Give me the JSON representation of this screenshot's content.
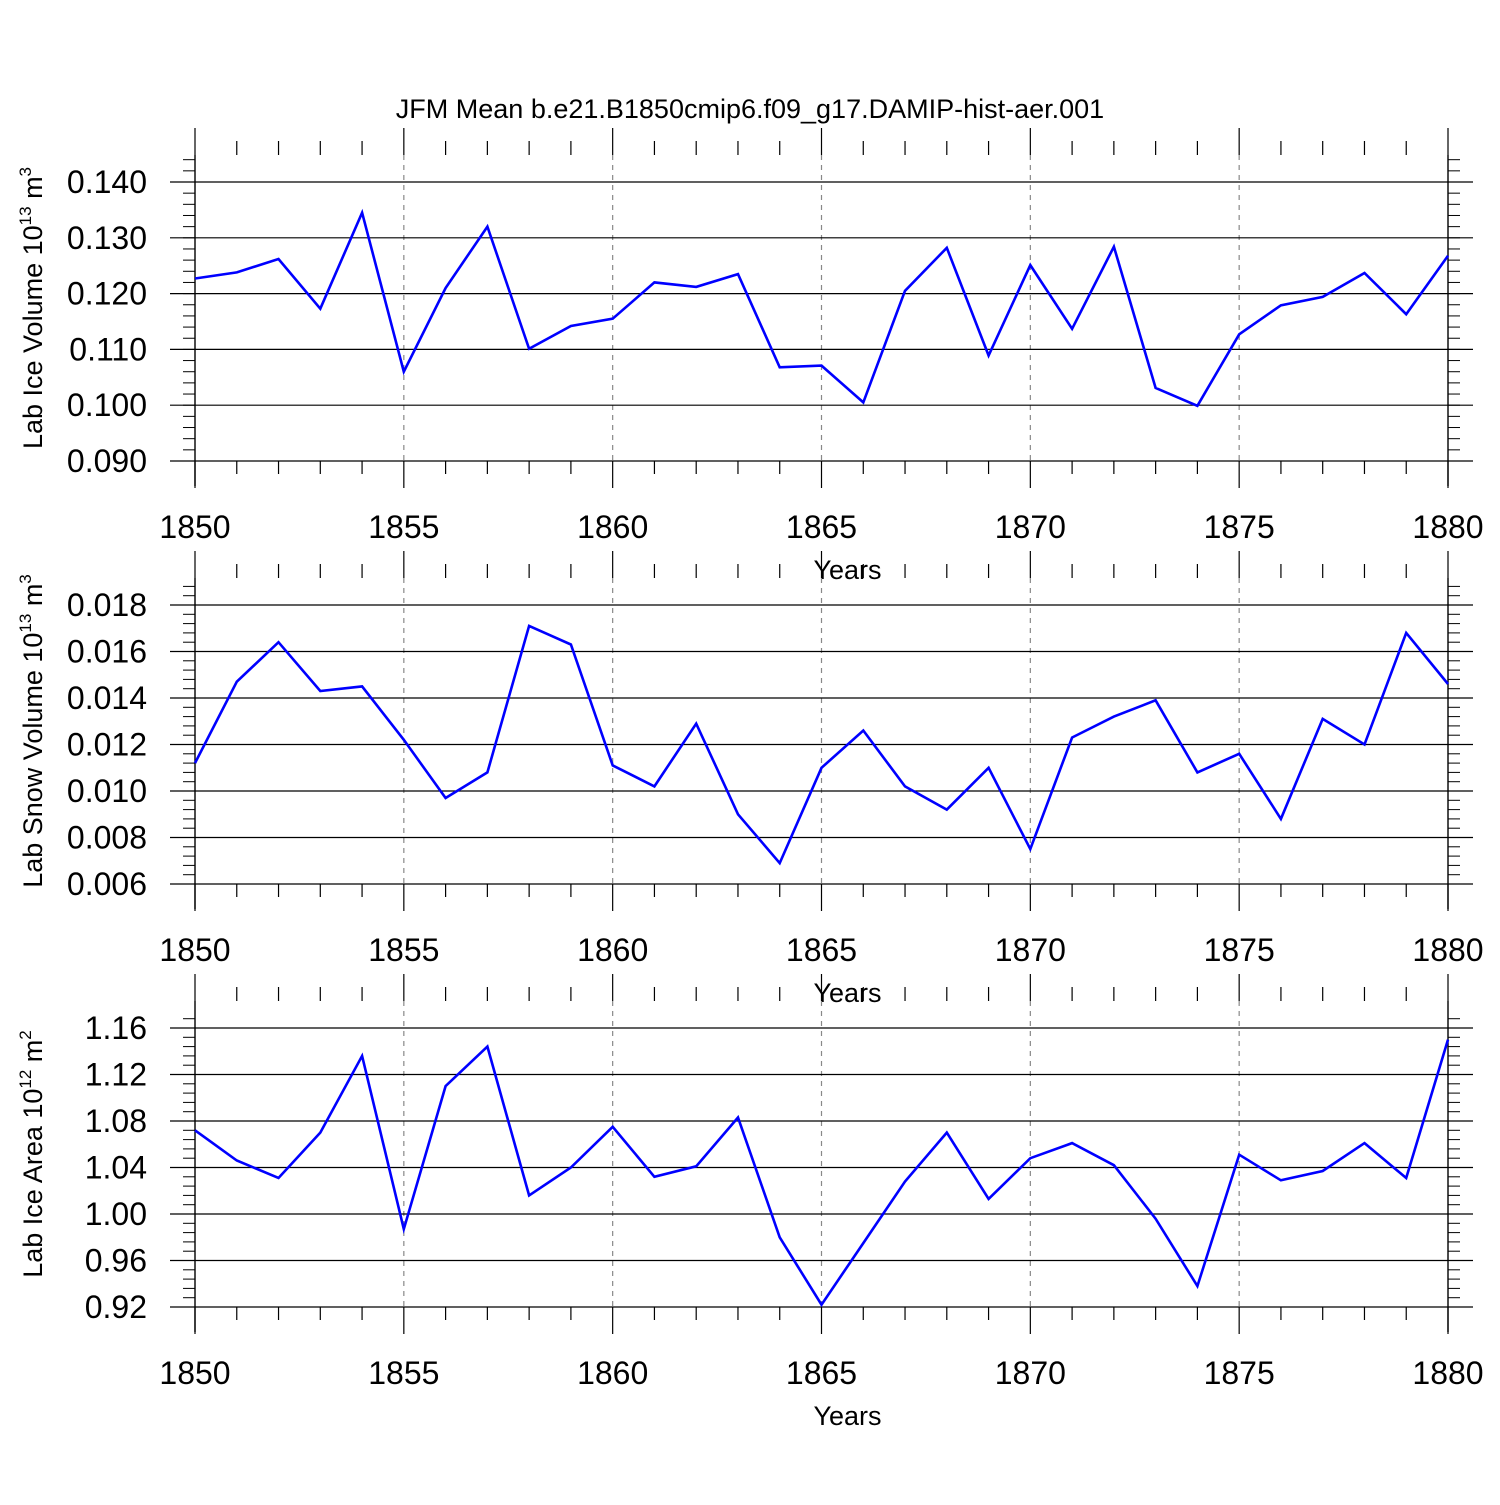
{
  "title": "JFM Mean b.e21.B1850cmip6.f09_g17.DAMIP-hist-aer.001",
  "line_color": "#0000ff",
  "chart_data": [
    {
      "type": "line",
      "title": "JFM Mean b.e21.B1850cmip6.f09_g17.DAMIP-hist-aer.001",
      "xlabel": "Years",
      "ylabel_main": "Lab Ice Volume 10",
      "ylabel_sup": "13",
      "ylabel_unit": " m",
      "ylabel_unit_sup": "3",
      "xlim": [
        1850,
        1880
      ],
      "ylim": [
        0.09,
        0.145
      ],
      "xticks": [
        1850,
        1855,
        1860,
        1865,
        1870,
        1875,
        1880
      ],
      "xtick_labels": [
        "1850",
        "1855",
        "1860",
        "1865",
        "1870",
        "1875",
        "1880"
      ],
      "yticks": [
        0.09,
        0.1,
        0.11,
        0.12,
        0.13,
        0.14
      ],
      "ytick_labels": [
        "0.090",
        "0.100",
        "0.110",
        "0.120",
        "0.130",
        "0.140"
      ],
      "y_minor_step": 0.002,
      "x": [
        1850,
        1851,
        1852,
        1853,
        1854,
        1855,
        1856,
        1857,
        1858,
        1859,
        1860,
        1861,
        1862,
        1863,
        1864,
        1865,
        1866,
        1867,
        1868,
        1869,
        1870,
        1871,
        1872,
        1873,
        1874,
        1875,
        1876,
        1877,
        1878,
        1879,
        1880
      ],
      "series": [
        {
          "name": "Lab Ice Volume",
          "values": [
            0.1227,
            0.1238,
            0.1262,
            0.1173,
            0.1345,
            0.106,
            0.121,
            0.132,
            0.1101,
            0.1142,
            0.1155,
            0.122,
            0.1212,
            0.1235,
            0.1068,
            0.1071,
            0.1005,
            0.1205,
            0.1282,
            0.1089,
            0.1251,
            0.1137,
            0.1284,
            0.1031,
            0.0999,
            0.1127,
            0.1179,
            0.1194,
            0.1237,
            0.1163,
            0.1268
          ]
        }
      ]
    },
    {
      "type": "line",
      "xlabel": "Years",
      "ylabel_main": "Lab Snow Volume 10",
      "ylabel_sup": "13",
      "ylabel_unit": " m",
      "ylabel_unit_sup": "3",
      "xlim": [
        1850,
        1880
      ],
      "ylim": [
        0.006,
        0.019
      ],
      "xticks": [
        1850,
        1855,
        1860,
        1865,
        1870,
        1875,
        1880
      ],
      "xtick_labels": [
        "1850",
        "1855",
        "1860",
        "1865",
        "1870",
        "1875",
        "1880"
      ],
      "yticks": [
        0.006,
        0.008,
        0.01,
        0.012,
        0.014,
        0.016,
        0.018
      ],
      "ytick_labels": [
        "0.006",
        "0.008",
        "0.010",
        "0.012",
        "0.014",
        "0.016",
        "0.018"
      ],
      "y_minor_step": 0.0004,
      "x": [
        1850,
        1851,
        1852,
        1853,
        1854,
        1855,
        1856,
        1857,
        1858,
        1859,
        1860,
        1861,
        1862,
        1863,
        1864,
        1865,
        1866,
        1867,
        1868,
        1869,
        1870,
        1871,
        1872,
        1873,
        1874,
        1875,
        1876,
        1877,
        1878,
        1879,
        1880
      ],
      "series": [
        {
          "name": "Lab Snow Volume",
          "values": [
            0.0112,
            0.0147,
            0.0164,
            0.0143,
            0.0145,
            0.0122,
            0.0097,
            0.0108,
            0.0171,
            0.0163,
            0.0111,
            0.0102,
            0.0129,
            0.009,
            0.0069,
            0.011,
            0.0126,
            0.0102,
            0.0092,
            0.011,
            0.0075,
            0.0123,
            0.0132,
            0.0139,
            0.0108,
            0.0116,
            0.0088,
            0.0131,
            0.012,
            0.0168,
            0.0146
          ]
        }
      ]
    },
    {
      "type": "line",
      "xlabel": "Years",
      "ylabel_main": "Lab Ice Area 10",
      "ylabel_sup": "12",
      "ylabel_unit": " m",
      "ylabel_unit_sup": "2",
      "xlim": [
        1850,
        1880
      ],
      "ylim": [
        0.92,
        1.168
      ],
      "xticks": [
        1850,
        1855,
        1860,
        1865,
        1870,
        1875,
        1880
      ],
      "xtick_labels": [
        "1850",
        "1855",
        "1860",
        "1865",
        "1870",
        "1875",
        "1880"
      ],
      "yticks": [
        0.92,
        0.96,
        1.0,
        1.04,
        1.08,
        1.12,
        1.16
      ],
      "ytick_labels": [
        "0.92",
        "0.96",
        "1.00",
        "1.04",
        "1.08",
        "1.12",
        "1.16"
      ],
      "y_minor_step": 0.008,
      "x": [
        1850,
        1851,
        1852,
        1853,
        1854,
        1855,
        1856,
        1857,
        1858,
        1859,
        1860,
        1861,
        1862,
        1863,
        1864,
        1865,
        1866,
        1867,
        1868,
        1869,
        1870,
        1871,
        1872,
        1873,
        1874,
        1875,
        1876,
        1877,
        1878,
        1879,
        1880
      ],
      "series": [
        {
          "name": "Lab Ice Area",
          "values": [
            1.072,
            1.046,
            1.031,
            1.07,
            1.136,
            0.987,
            1.11,
            1.144,
            1.016,
            1.04,
            1.075,
            1.032,
            1.041,
            1.083,
            0.98,
            0.922,
            0.975,
            1.028,
            1.07,
            1.013,
            1.048,
            1.061,
            1.042,
            0.996,
            0.938,
            1.051,
            1.029,
            1.037,
            1.061,
            1.031,
            1.15
          ]
        }
      ]
    }
  ]
}
